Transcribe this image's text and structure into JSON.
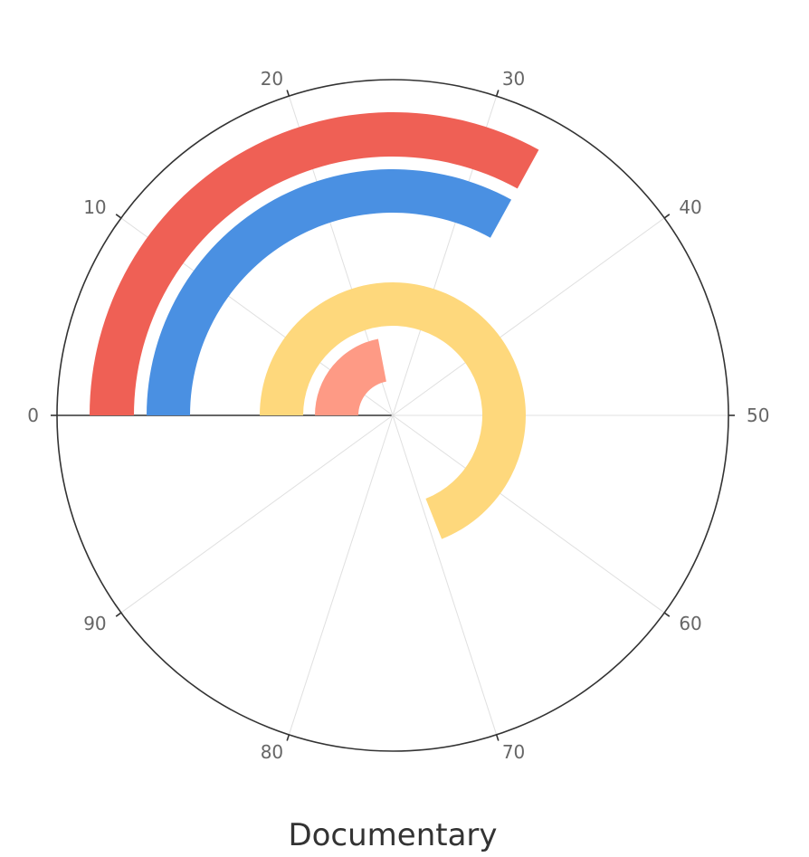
{
  "chart_data": {
    "type": "radial-bar",
    "title": "",
    "angle_axis": {
      "min": 0,
      "max": 100,
      "ticks": [
        0,
        10,
        20,
        30,
        40,
        50,
        60,
        70,
        80,
        90
      ],
      "tick_labels": [
        "0",
        "10",
        "20",
        "30",
        "40",
        "50",
        "60",
        "70",
        "80",
        "90"
      ],
      "direction": "clockwise",
      "start": "left"
    },
    "grid": true,
    "series": [
      {
        "value": 33,
        "color": "#ef6055"
      },
      {
        "value": 33,
        "color": "#4a90e2"
      },
      {
        "value": 69,
        "color": "#fed87c"
      },
      {
        "value": 22,
        "color": "#fe9a85"
      }
    ]
  },
  "footer": {
    "label": "Documentary"
  }
}
